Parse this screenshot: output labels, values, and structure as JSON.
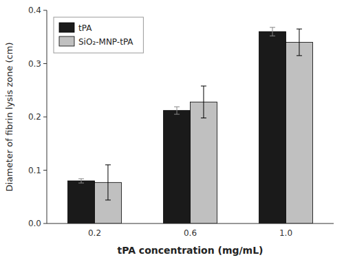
{
  "chart_data": {
    "type": "bar",
    "categories": [
      "0.2",
      "0.6",
      "1.0"
    ],
    "series": [
      {
        "name": "tPA",
        "color": "#1a1a1a",
        "values": [
          0.08,
          0.212,
          0.36
        ],
        "errors": [
          0.004,
          0.007,
          0.008
        ]
      },
      {
        "name": "SiO₂-MNP-tPA",
        "color": "#c0c0c0",
        "values": [
          0.077,
          0.228,
          0.34
        ],
        "errors": [
          0.033,
          0.03,
          0.025
        ]
      }
    ],
    "xlabel": "tPA concentration (mg/mL)",
    "ylabel": "Diameter of fibrin lysis zone (cm)",
    "ylim": [
      0.0,
      0.4
    ],
    "yticks": [
      {
        "value": 0.0,
        "label": "0.0"
      },
      0.1,
      0.2,
      0.3,
      0.4
    ],
    "grid": false,
    "legend": "upper-left"
  }
}
